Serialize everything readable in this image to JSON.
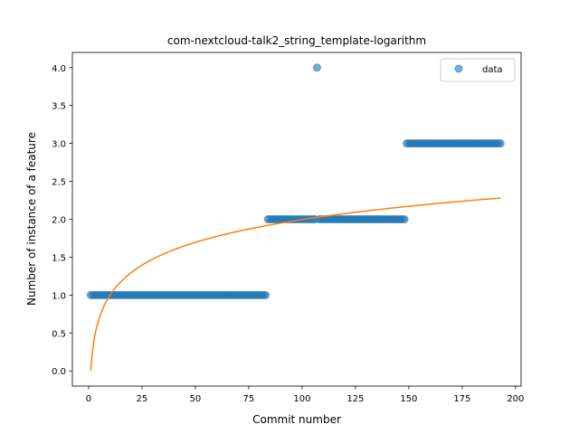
{
  "chart_data": {
    "type": "scatter",
    "title": "com-nextcloud-talk2_string_template-logarithm",
    "xlabel": "Commit number",
    "ylabel": "Number of instance of a feature",
    "xlim": [
      -7.6,
      202.6
    ],
    "ylim": [
      -0.2,
      4.2
    ],
    "xticks": [
      0,
      25,
      50,
      75,
      100,
      125,
      150,
      175,
      200
    ],
    "yticks": [
      0.0,
      0.5,
      1.0,
      1.5,
      2.0,
      2.5,
      3.0,
      3.5,
      4.0
    ],
    "legend": {
      "position": "top-right",
      "entries": [
        "data"
      ]
    },
    "grid": false,
    "colors": {
      "data": "#1f77b4",
      "fit": "#ff7f0e"
    },
    "series": [
      {
        "name": "data",
        "kind": "scatter",
        "segments": [
          {
            "x_start": 1,
            "x_end": 83,
            "y": 1
          },
          {
            "x_start": 84,
            "x_end": 106,
            "y": 2
          },
          {
            "x_start": 107,
            "x_end": 107,
            "y": 4
          },
          {
            "x_start": 108,
            "x_end": 148,
            "y": 2
          },
          {
            "x_start": 149,
            "x_end": 193,
            "y": 3
          }
        ]
      },
      {
        "kind": "line",
        "formula": "0.4333 * ln(x)",
        "x_range": [
          1,
          193
        ]
      }
    ]
  }
}
